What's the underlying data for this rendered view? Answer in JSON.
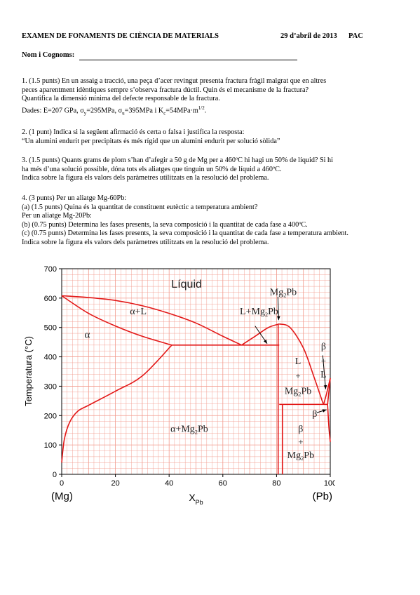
{
  "header": {
    "title": "EXAMEN DE FONAMENTS DE CIÈNCIA DE MATERIALS",
    "date": "29 d’abril de 2013",
    "code": "PAC",
    "name_label": "Nom i Cognoms:"
  },
  "q1": {
    "line1": "1. (1.5 punts) En un assaig a tracció, una peça d’acer revingut presenta fractura fràgil malgrat que en altres",
    "line2": "peces aparentment idèntiques sempre s’observa fractura dúctil. Quin és el mecanisme de la fractura?",
    "line3": "Quantifica la dimensió mínima del defecte responsable de la fractura.",
    "line4": "Dades: E=207 GPa, σy=295MPa, σu=395MPa i Kc=54MPa·m1/2."
  },
  "q2": {
    "line1": "2. (1 punt) Indica si la següent afirmació és certa o falsa i justifica la resposta:",
    "line2": "“Un alumini endurit per precipitats és més rígid que un alumini endurit per solució sòlida”"
  },
  "q3": {
    "line1": "3. (1.5 punts) Quants grams de plom s’han d’afegir a 50 g de Mg per a 460ºC hi hagi un 50% de líquid? Si hi",
    "line2": "ha més d’una solució possible, dóna tots els aliatges que tinguin un 50% de líquid a 460ºC.",
    "line3": "Indica sobre la figura els valors dels paràmetres utilitzats en la resolució del problema."
  },
  "q4": {
    "line1": "4. (3 punts) Per un aliatge Mg-60Pb:",
    "line2": "(a) (1.5 punts) Quina és la quantitat de constituent eutèctic a temperatura ambient?",
    "line3": "Per un aliatge Mg-20Pb:",
    "line4": "(b) (0.75 punts) Determina les fases presents, la seva composició i la quantitat de cada fase a 400ºC.",
    "line5": "(c) (0.75 punts) Determina les fases presents, la seva composició i la quantitat de cada fase a temperatura ambient.",
    "line6": "Indica sobre la figura els valors dels paràmetres utilitzats en la resolució del problema."
  },
  "chart_data": {
    "type": "phase-diagram",
    "ylabel": "Temperatura (°C)",
    "xlabel": "XPb",
    "xlim": [
      0,
      100
    ],
    "ylim": [
      0,
      700
    ],
    "x_ticks": [
      0,
      20,
      40,
      60,
      80,
      100
    ],
    "y_ticks": [
      0,
      100,
      200,
      300,
      400,
      500,
      600,
      700
    ],
    "x_end_labels": [
      "(Mg)",
      "(Pb)"
    ],
    "region_labels": [
      "Líquid",
      "α+L",
      "α",
      "L+Mg2Pb",
      "Mg2Pb",
      "α+Mg2Pb",
      "L + Mg2Pb",
      "β + L",
      "β + Mg2Pb",
      "β"
    ],
    "lines": {
      "liquidus_mg_side": [
        [
          0,
          608
        ],
        [
          10,
          602
        ],
        [
          20,
          592
        ],
        [
          30,
          574
        ],
        [
          40,
          548
        ],
        [
          50,
          515
        ],
        [
          60,
          470
        ],
        [
          67,
          440
        ]
      ],
      "solidus_mg_side": [
        [
          0,
          608
        ],
        [
          10,
          548
        ],
        [
          20,
          505
        ],
        [
          30,
          470
        ],
        [
          41,
          440
        ]
      ],
      "solvus_mg_side": [
        [
          0,
          40
        ],
        [
          1,
          120
        ],
        [
          3,
          178
        ],
        [
          6,
          215
        ],
        [
          10,
          235
        ],
        [
          20,
          283
        ],
        [
          30,
          335
        ],
        [
          41,
          440
        ]
      ],
      "eutectic_1": [
        [
          41,
          440
        ],
        [
          81,
          440
        ]
      ],
      "liquidus_mg2pb_left": [
        [
          67,
          440
        ],
        [
          72,
          470
        ],
        [
          77,
          500
        ],
        [
          81,
          512
        ]
      ],
      "liquidus_mg2pb_right": [
        [
          81,
          512
        ],
        [
          85,
          500
        ],
        [
          90,
          430
        ],
        [
          94,
          330
        ],
        [
          97,
          250
        ],
        [
          97.5,
          238
        ]
      ],
      "mg2pb_compound": [
        [
          80.6,
          0
        ],
        [
          80.6,
          512
        ]
      ],
      "eutectic_2": [
        [
          81,
          238
        ],
        [
          99,
          238
        ]
      ],
      "liquidus_pb_side": [
        [
          97.5,
          238
        ],
        [
          98.5,
          270
        ],
        [
          100,
          327
        ]
      ],
      "solidus_pb_side": [
        [
          99,
          238
        ],
        [
          100,
          327
        ]
      ],
      "solvus_pb_side": [
        [
          99,
          238
        ],
        [
          99.5,
          160
        ],
        [
          100,
          110
        ]
      ]
    },
    "grid": true,
    "line_color": "#e31818",
    "grid_color": "#f29a8c"
  }
}
